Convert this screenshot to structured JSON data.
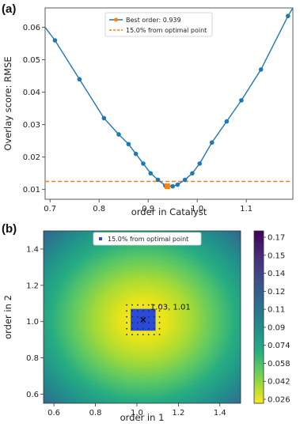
{
  "panel_a_label": "(a)",
  "panel_b_label": "(b)",
  "chart_data": [
    {
      "type": "line",
      "xlabel": "order in Catalyst",
      "ylabel": "Overlay score: RMSE",
      "xlim": [
        0.69,
        1.195
      ],
      "ylim": [
        0.007,
        0.066
      ],
      "xticks": [
        "0.7",
        "0.8",
        "0.9",
        "1.0",
        "1.1"
      ],
      "yticks": [
        "0.01",
        "0.02",
        "0.03",
        "0.04",
        "0.05",
        "0.06"
      ],
      "series": [
        {
          "x": [
            0.69,
            0.71,
            0.76,
            0.81,
            0.84,
            0.86,
            0.875,
            0.89,
            0.905,
            0.92,
            0.935,
            0.95,
            0.96,
            0.975,
            0.99,
            1.005,
            1.03,
            1.06,
            1.09,
            1.13,
            1.185,
            1.195
          ],
          "values": [
            0.06,
            0.056,
            0.044,
            0.032,
            0.027,
            0.024,
            0.021,
            0.018,
            0.015,
            0.013,
            0.0112,
            0.011,
            0.0115,
            0.013,
            0.015,
            0.018,
            0.0245,
            0.031,
            0.0375,
            0.047,
            0.0635,
            0.066
          ]
        }
      ],
      "best_point": {
        "x": 0.939,
        "y": 0.011
      },
      "threshold_y": 0.0125,
      "legend": {
        "placement": "top-center",
        "entries": [
          "Best order: 0.939",
          "15.0% from optimal point"
        ]
      },
      "colors": {
        "line": "#1f77b4",
        "best": "#ff7f0e",
        "threshold": "#ff7f0e"
      }
    },
    {
      "type": "heatmap",
      "xlabel": "order in 1",
      "ylabel": "order in 2",
      "xlim": [
        0.55,
        1.5
      ],
      "ylim": [
        0.55,
        1.5
      ],
      "xticks": [
        "0.6",
        "0.8",
        "1.0",
        "1.2",
        "1.4"
      ],
      "yticks": [
        "0.6",
        "0.8",
        "1.0",
        "1.2",
        "1.4"
      ],
      "annotation": "1.03, 1.01",
      "optimum": {
        "x": 1.03,
        "y": 1.01
      },
      "region": {
        "x": [
          0.97,
          1.09
        ],
        "y": [
          0.95,
          1.07
        ]
      },
      "legend": {
        "placement": "top-center",
        "entries": [
          "15.0% from optimal point"
        ]
      },
      "colorbar": {
        "ticks": [
          "0.17",
          "0.15",
          "0.14",
          "0.12",
          "0.11",
          "0.09",
          "0.074",
          "0.058",
          "0.042",
          "0.026"
        ],
        "range": [
          0.026,
          0.18
        ],
        "colormap": "viridis_r"
      },
      "colors": {
        "region": "#2b4bd6",
        "markers": "#1a237e"
      }
    }
  ]
}
